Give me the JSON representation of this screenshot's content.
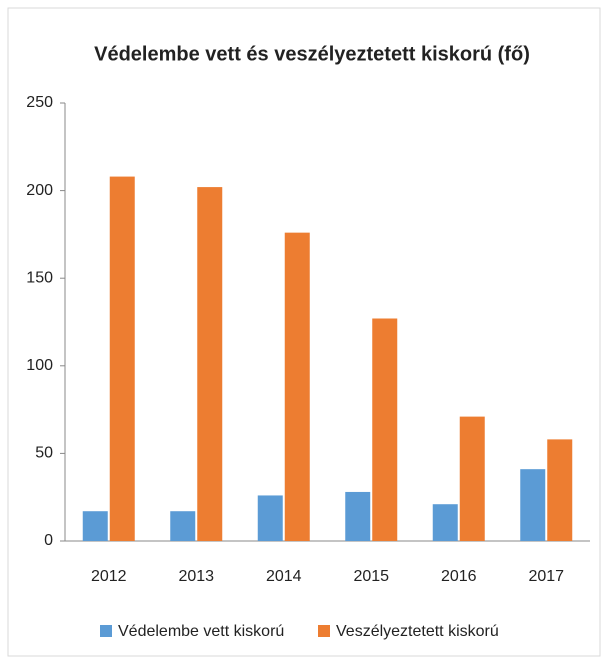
{
  "chart_data": {
    "type": "bar",
    "title": "Védelembe vett és veszélyeztetett kiskorú (fő)",
    "categories": [
      "2012",
      "2013",
      "2014",
      "2015",
      "2016",
      "2017"
    ],
    "series": [
      {
        "name": "Védelembe vett kiskorú",
        "color": "#5b9bd5",
        "values": [
          17,
          17,
          26,
          28,
          21,
          41
        ]
      },
      {
        "name": "Veszélyeztetett kiskorú",
        "color": "#ed7d31",
        "values": [
          208,
          202,
          176,
          127,
          71,
          58
        ]
      }
    ],
    "ylim": [
      0,
      250
    ],
    "yticks": [
      0,
      50,
      100,
      150,
      200,
      250
    ],
    "grid": false,
    "legend": "bottom"
  }
}
